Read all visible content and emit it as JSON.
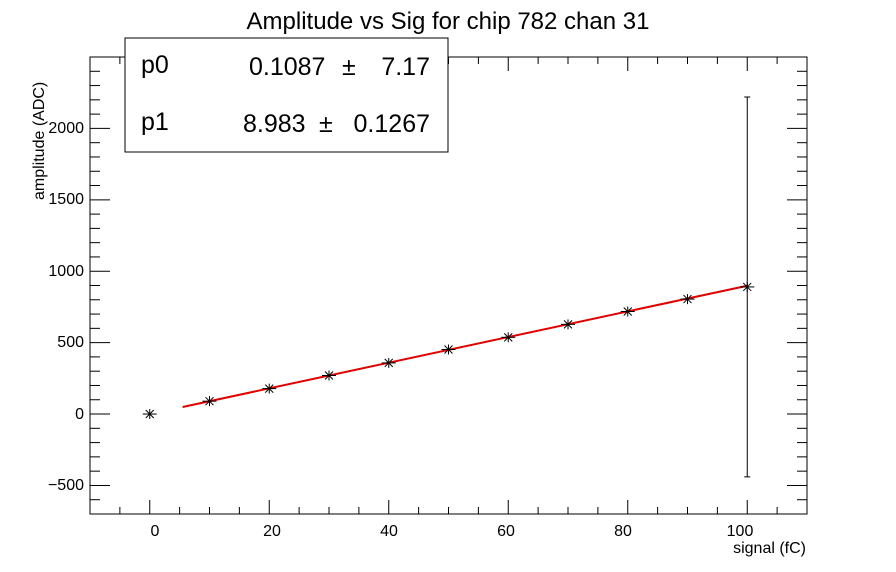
{
  "chart_data": {
    "type": "scatter",
    "title": "Amplitude vs Sig for chip 782 chan 31",
    "xlabel": "signal (fC)",
    "ylabel": "amplitude (ADC)",
    "xlim": [
      -10,
      110
    ],
    "ylim": [
      -700,
      2500
    ],
    "x_ticks": [
      "0",
      "20",
      "40",
      "60",
      "80",
      "100"
    ],
    "y_ticks": [
      "−500",
      "0",
      "500",
      "1000",
      "1500",
      "2000"
    ],
    "grid": false,
    "points": [
      {
        "x": 0,
        "y": 0,
        "yerr": 0
      },
      {
        "x": 10,
        "y": 90,
        "yerr": 0
      },
      {
        "x": 20,
        "y": 178,
        "yerr": 0
      },
      {
        "x": 30,
        "y": 270,
        "yerr": 0
      },
      {
        "x": 40,
        "y": 358,
        "yerr": 0
      },
      {
        "x": 50,
        "y": 452,
        "yerr": 0
      },
      {
        "x": 60,
        "y": 537,
        "yerr": 0
      },
      {
        "x": 70,
        "y": 628,
        "yerr": 0
      },
      {
        "x": 80,
        "y": 718,
        "yerr": 0
      },
      {
        "x": 90,
        "y": 805,
        "yerr": 0
      },
      {
        "x": 100,
        "y": 890,
        "yerr": 1330
      }
    ],
    "fit": {
      "color": "#e00000",
      "x_range": [
        5.5,
        100
      ],
      "p0_label": "p0",
      "p0_value": "0.1087",
      "p0_error": "7.17",
      "p1_label": "p1",
      "p1_value": "8.983",
      "p1_error": "0.1267",
      "pm_symbol": "±",
      "p0": 0.1087,
      "p1": 8.983
    }
  }
}
